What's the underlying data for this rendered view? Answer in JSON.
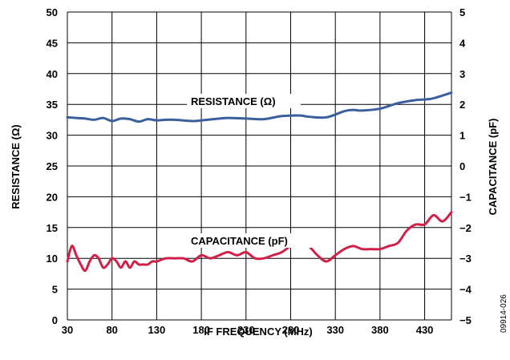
{
  "chart_data": {
    "type": "line",
    "xlabel": "IF FREQUENCY (MHz)",
    "ylabel_left": "RESISTANCE (Ω)",
    "ylabel_right": "CAPACITANCE (pF)",
    "xlim": [
      30,
      460
    ],
    "ylim_left": [
      0,
      50
    ],
    "ylim_right": [
      -5,
      5
    ],
    "grid": true,
    "x_ticks": [
      "30",
      "80",
      "130",
      "180",
      "230",
      "280",
      "330",
      "380",
      "430"
    ],
    "y_ticks_left": [
      "0",
      "5",
      "10",
      "15",
      "20",
      "25",
      "30",
      "35",
      "40",
      "45",
      "50"
    ],
    "y_ticks_right": [
      "−5",
      "−4",
      "−3",
      "−2",
      "−1",
      "0",
      "1",
      "2",
      "3",
      "4",
      "5"
    ],
    "series": [
      {
        "name": "RESISTANCE (Ω)",
        "axis": "left",
        "color": "#3a5f9e",
        "x": [
          30,
          40,
          50,
          60,
          70,
          80,
          90,
          100,
          110,
          120,
          130,
          140,
          150,
          170,
          180,
          200,
          210,
          230,
          250,
          270,
          290,
          300,
          320,
          340,
          350,
          360,
          380,
          400,
          420,
          430,
          440,
          460
        ],
        "values": [
          32.9,
          32.8,
          32.7,
          32.5,
          32.8,
          32.3,
          32.7,
          32.6,
          32.2,
          32.6,
          32.4,
          32.5,
          32.5,
          32.3,
          32.4,
          32.7,
          32.8,
          32.7,
          32.6,
          33.1,
          33.2,
          33.0,
          32.9,
          33.9,
          34.1,
          34.0,
          34.3,
          35.2,
          35.7,
          35.8,
          36.0,
          36.9
        ]
      },
      {
        "name": "CAPACITANCE (pF)",
        "axis": "right",
        "color": "#d21f47",
        "x": [
          30,
          35,
          40,
          45,
          50,
          55,
          60,
          65,
          70,
          75,
          80,
          85,
          90,
          95,
          100,
          105,
          110,
          115,
          120,
          125,
          130,
          140,
          150,
          160,
          170,
          180,
          190,
          200,
          210,
          220,
          230,
          240,
          250,
          260,
          270,
          280,
          290,
          300,
          310,
          320,
          330,
          340,
          350,
          360,
          370,
          380,
          390,
          400,
          410,
          420,
          430,
          440,
          450,
          460
        ],
        "values": [
          -3.1,
          -2.6,
          -2.9,
          -3.2,
          -3.4,
          -3.1,
          -2.9,
          -3.0,
          -3.3,
          -3.2,
          -3.0,
          -3.1,
          -3.3,
          -3.1,
          -3.3,
          -3.1,
          -3.2,
          -3.2,
          -3.2,
          -3.1,
          -3.1,
          -3.0,
          -3.0,
          -3.0,
          -3.1,
          -2.9,
          -3.0,
          -2.9,
          -2.8,
          -2.9,
          -2.8,
          -3.0,
          -3.0,
          -2.9,
          -2.8,
          -2.6,
          -2.5,
          -2.6,
          -2.9,
          -3.1,
          -2.9,
          -2.7,
          -2.6,
          -2.7,
          -2.7,
          -2.7,
          -2.6,
          -2.5,
          -2.1,
          -1.9,
          -1.9,
          -1.6,
          -1.8,
          -1.5
        ]
      }
    ],
    "annotations": [
      "RESISTANCE (Ω)",
      "CAPACITANCE (pF)"
    ],
    "figure_code": "09914-026"
  }
}
